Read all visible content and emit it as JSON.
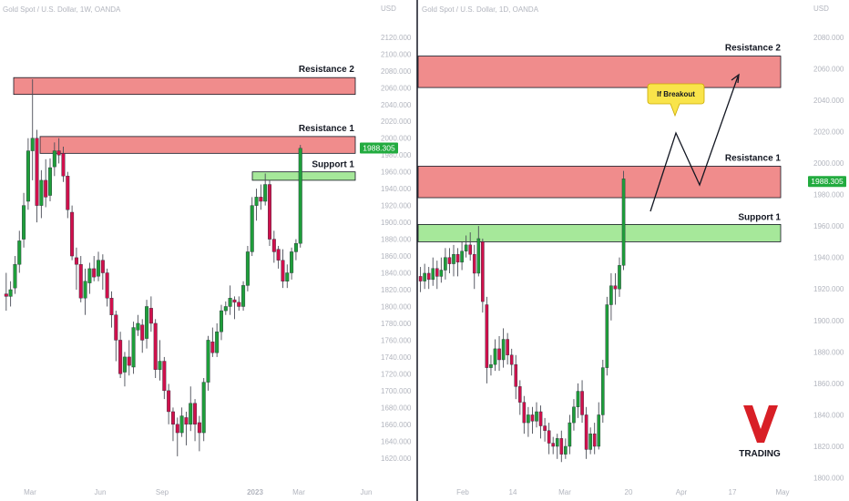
{
  "colors": {
    "up": "#1e9e3a",
    "down": "#d0104c",
    "zone_red": "#f08c8c",
    "zone_green": "#a6e89a",
    "badge": "#22ab3f",
    "callout": "#f9e44a",
    "logo_red": "#d81f26"
  },
  "chart_data": [
    {
      "type": "candlestick",
      "title": "Gold Spot / U.S. Dollar, 1W, OANDA",
      "currency": "USD",
      "current_price": "1988.305",
      "y_ticks": [
        "2120.000",
        "2100.000",
        "2080.000",
        "2060.000",
        "2040.000",
        "2020.000",
        "2000.000",
        "1980.000",
        "1960.000",
        "1940.000",
        "1920.000",
        "1900.000",
        "1880.000",
        "1860.000",
        "1840.000",
        "1820.000",
        "1800.000",
        "1780.000",
        "1760.000",
        "1740.000",
        "1720.000",
        "1700.000",
        "1680.000",
        "1660.000",
        "1640.000",
        "1620.000"
      ],
      "x_ticks": [
        "Mar",
        "Jun",
        "Sep",
        "2023",
        "Mar",
        "Jun"
      ],
      "ylim": [
        1610,
        2135
      ],
      "zones": [
        {
          "label": "Resistance 2",
          "kind": "resistance",
          "low": 2052,
          "high": 2072
        },
        {
          "label": "Resistance 1",
          "kind": "resistance",
          "low": 1982,
          "high": 2002
        },
        {
          "label": "Support 1",
          "kind": "support",
          "low": 1950,
          "high": 1960
        }
      ],
      "candles": [
        [
          1815,
          1812,
          1840,
          1795
        ],
        [
          1812,
          1820,
          1830,
          1800
        ],
        [
          1822,
          1850,
          1860,
          1815
        ],
        [
          1850,
          1878,
          1890,
          1840
        ],
        [
          1880,
          1920,
          1935,
          1870
        ],
        [
          1925,
          1985,
          2000,
          1915
        ],
        [
          1985,
          2000,
          2070,
          1950
        ],
        [
          2000,
          1920,
          2010,
          1900
        ],
        [
          1920,
          1950,
          1962,
          1905
        ],
        [
          1950,
          1930,
          1975,
          1918
        ],
        [
          1932,
          1965,
          1976,
          1925
        ],
        [
          1966,
          1985,
          1995,
          1955
        ],
        [
          1985,
          1980,
          2000,
          1970
        ],
        [
          1982,
          1955,
          1990,
          1948
        ],
        [
          1955,
          1915,
          1960,
          1905
        ],
        [
          1912,
          1860,
          1920,
          1855
        ],
        [
          1858,
          1850,
          1870,
          1820
        ],
        [
          1850,
          1810,
          1860,
          1805
        ],
        [
          1810,
          1830,
          1845,
          1790
        ],
        [
          1828,
          1845,
          1852,
          1815
        ],
        [
          1845,
          1835,
          1860,
          1830
        ],
        [
          1836,
          1855,
          1865,
          1830
        ],
        [
          1855,
          1840,
          1862,
          1820
        ],
        [
          1840,
          1810,
          1845,
          1800
        ],
        [
          1810,
          1790,
          1818,
          1775
        ],
        [
          1790,
          1760,
          1795,
          1735
        ],
        [
          1760,
          1720,
          1770,
          1715
        ],
        [
          1722,
          1740,
          1746,
          1705
        ],
        [
          1740,
          1730,
          1760,
          1718
        ],
        [
          1728,
          1775,
          1782,
          1720
        ],
        [
          1772,
          1780,
          1790,
          1765
        ],
        [
          1778,
          1760,
          1785,
          1745
        ],
        [
          1762,
          1800,
          1808,
          1750
        ],
        [
          1798,
          1780,
          1812,
          1770
        ],
        [
          1780,
          1725,
          1785,
          1715
        ],
        [
          1725,
          1735,
          1760,
          1712
        ],
        [
          1735,
          1700,
          1740,
          1690
        ],
        [
          1700,
          1675,
          1708,
          1660
        ],
        [
          1675,
          1660,
          1680,
          1640
        ],
        [
          1660,
          1650,
          1668,
          1622
        ],
        [
          1650,
          1670,
          1680,
          1645
        ],
        [
          1668,
          1660,
          1675,
          1635
        ],
        [
          1660,
          1685,
          1705,
          1652
        ],
        [
          1685,
          1660,
          1690,
          1640
        ],
        [
          1662,
          1650,
          1670,
          1628
        ],
        [
          1650,
          1710,
          1715,
          1640
        ],
        [
          1710,
          1760,
          1765,
          1700
        ],
        [
          1758,
          1745,
          1775,
          1740
        ],
        [
          1745,
          1770,
          1780,
          1740
        ],
        [
          1770,
          1795,
          1802,
          1760
        ],
        [
          1795,
          1800,
          1806,
          1790
        ],
        [
          1800,
          1810,
          1825,
          1790
        ],
        [
          1808,
          1805,
          1812,
          1785
        ],
        [
          1805,
          1800,
          1812,
          1795
        ],
        [
          1800,
          1825,
          1830,
          1795
        ],
        [
          1825,
          1865,
          1872,
          1818
        ],
        [
          1865,
          1920,
          1930,
          1860
        ],
        [
          1920,
          1930,
          1940,
          1902
        ],
        [
          1930,
          1925,
          1945,
          1915
        ],
        [
          1925,
          1945,
          1958,
          1920
        ],
        [
          1945,
          1880,
          1950,
          1872
        ],
        [
          1880,
          1865,
          1890,
          1852
        ],
        [
          1868,
          1855,
          1872,
          1845
        ],
        [
          1855,
          1830,
          1868,
          1822
        ],
        [
          1830,
          1840,
          1850,
          1822
        ],
        [
          1840,
          1865,
          1870,
          1832
        ],
        [
          1865,
          1875,
          1880,
          1855
        ],
        [
          1875,
          1988,
          1992,
          1870
        ]
      ]
    },
    {
      "type": "candlestick",
      "title": "Gold Spot / U.S. Dollar, 1D, OANDA",
      "currency": "USD",
      "current_price": "1988.305",
      "y_ticks": [
        "2080.000",
        "2060.000",
        "2040.000",
        "2020.000",
        "2000.000",
        "1980.000",
        "1960.000",
        "1940.000",
        "1920.000",
        "1900.000",
        "1880.000",
        "1860.000",
        "1840.000",
        "1820.000",
        "1800.000"
      ],
      "x_ticks": [
        "Feb",
        "14",
        "Mar",
        "20",
        "Apr",
        "17",
        "May"
      ],
      "ylim": [
        1798,
        2088
      ],
      "zones": [
        {
          "label": "Resistance 2",
          "kind": "resistance",
          "low": 2048,
          "high": 2068
        },
        {
          "label": "Resistance 1",
          "kind": "resistance",
          "low": 1978,
          "high": 1998
        },
        {
          "label": "Support 1",
          "kind": "support",
          "low": 1950,
          "high": 1961
        }
      ],
      "callout": "If Breakout",
      "logo_text": "TRADING",
      "candles": [
        [
          1928,
          1925,
          1934,
          1918
        ],
        [
          1925,
          1930,
          1936,
          1920
        ],
        [
          1930,
          1926,
          1934,
          1920
        ],
        [
          1926,
          1933,
          1940,
          1922
        ],
        [
          1933,
          1928,
          1938,
          1920
        ],
        [
          1928,
          1932,
          1940,
          1924
        ],
        [
          1932,
          1940,
          1946,
          1926
        ],
        [
          1940,
          1936,
          1946,
          1930
        ],
        [
          1936,
          1942,
          1948,
          1928
        ],
        [
          1942,
          1937,
          1946,
          1928
        ],
        [
          1937,
          1944,
          1950,
          1932
        ],
        [
          1944,
          1948,
          1954,
          1940
        ],
        [
          1948,
          1942,
          1956,
          1938
        ],
        [
          1942,
          1930,
          1948,
          1920
        ],
        [
          1930,
          1952,
          1960,
          1928
        ],
        [
          1950,
          1912,
          1952,
          1905
        ],
        [
          1910,
          1870,
          1915,
          1860
        ],
        [
          1870,
          1872,
          1878,
          1865
        ],
        [
          1872,
          1882,
          1888,
          1868
        ],
        [
          1882,
          1875,
          1890,
          1868
        ],
        [
          1875,
          1888,
          1895,
          1870
        ],
        [
          1888,
          1878,
          1892,
          1872
        ],
        [
          1878,
          1872,
          1882,
          1865
        ],
        [
          1872,
          1858,
          1878,
          1850
        ],
        [
          1858,
          1848,
          1862,
          1840
        ],
        [
          1848,
          1835,
          1852,
          1828
        ],
        [
          1835,
          1840,
          1845,
          1826
        ],
        [
          1840,
          1836,
          1845,
          1828
        ],
        [
          1836,
          1842,
          1848,
          1832
        ],
        [
          1842,
          1833,
          1846,
          1825
        ],
        [
          1833,
          1830,
          1838,
          1823
        ],
        [
          1830,
          1822,
          1835,
          1815
        ],
        [
          1822,
          1820,
          1826,
          1815
        ],
        [
          1820,
          1825,
          1828,
          1812
        ],
        [
          1825,
          1815,
          1830,
          1810
        ],
        [
          1815,
          1820,
          1825,
          1812
        ],
        [
          1820,
          1835,
          1840,
          1815
        ],
        [
          1835,
          1845,
          1850,
          1830
        ],
        [
          1845,
          1855,
          1860,
          1838
        ],
        [
          1855,
          1840,
          1862,
          1835
        ],
        [
          1840,
          1818,
          1845,
          1812
        ],
        [
          1818,
          1828,
          1832,
          1815
        ],
        [
          1828,
          1820,
          1835,
          1815
        ],
        [
          1820,
          1840,
          1848,
          1818
        ],
        [
          1840,
          1870,
          1875,
          1835
        ],
        [
          1870,
          1910,
          1915,
          1865
        ],
        [
          1910,
          1922,
          1930,
          1900
        ],
        [
          1922,
          1920,
          1930,
          1910
        ],
        [
          1920,
          1935,
          1940,
          1915
        ],
        [
          1935,
          1990,
          1995,
          1932
        ]
      ]
    }
  ]
}
